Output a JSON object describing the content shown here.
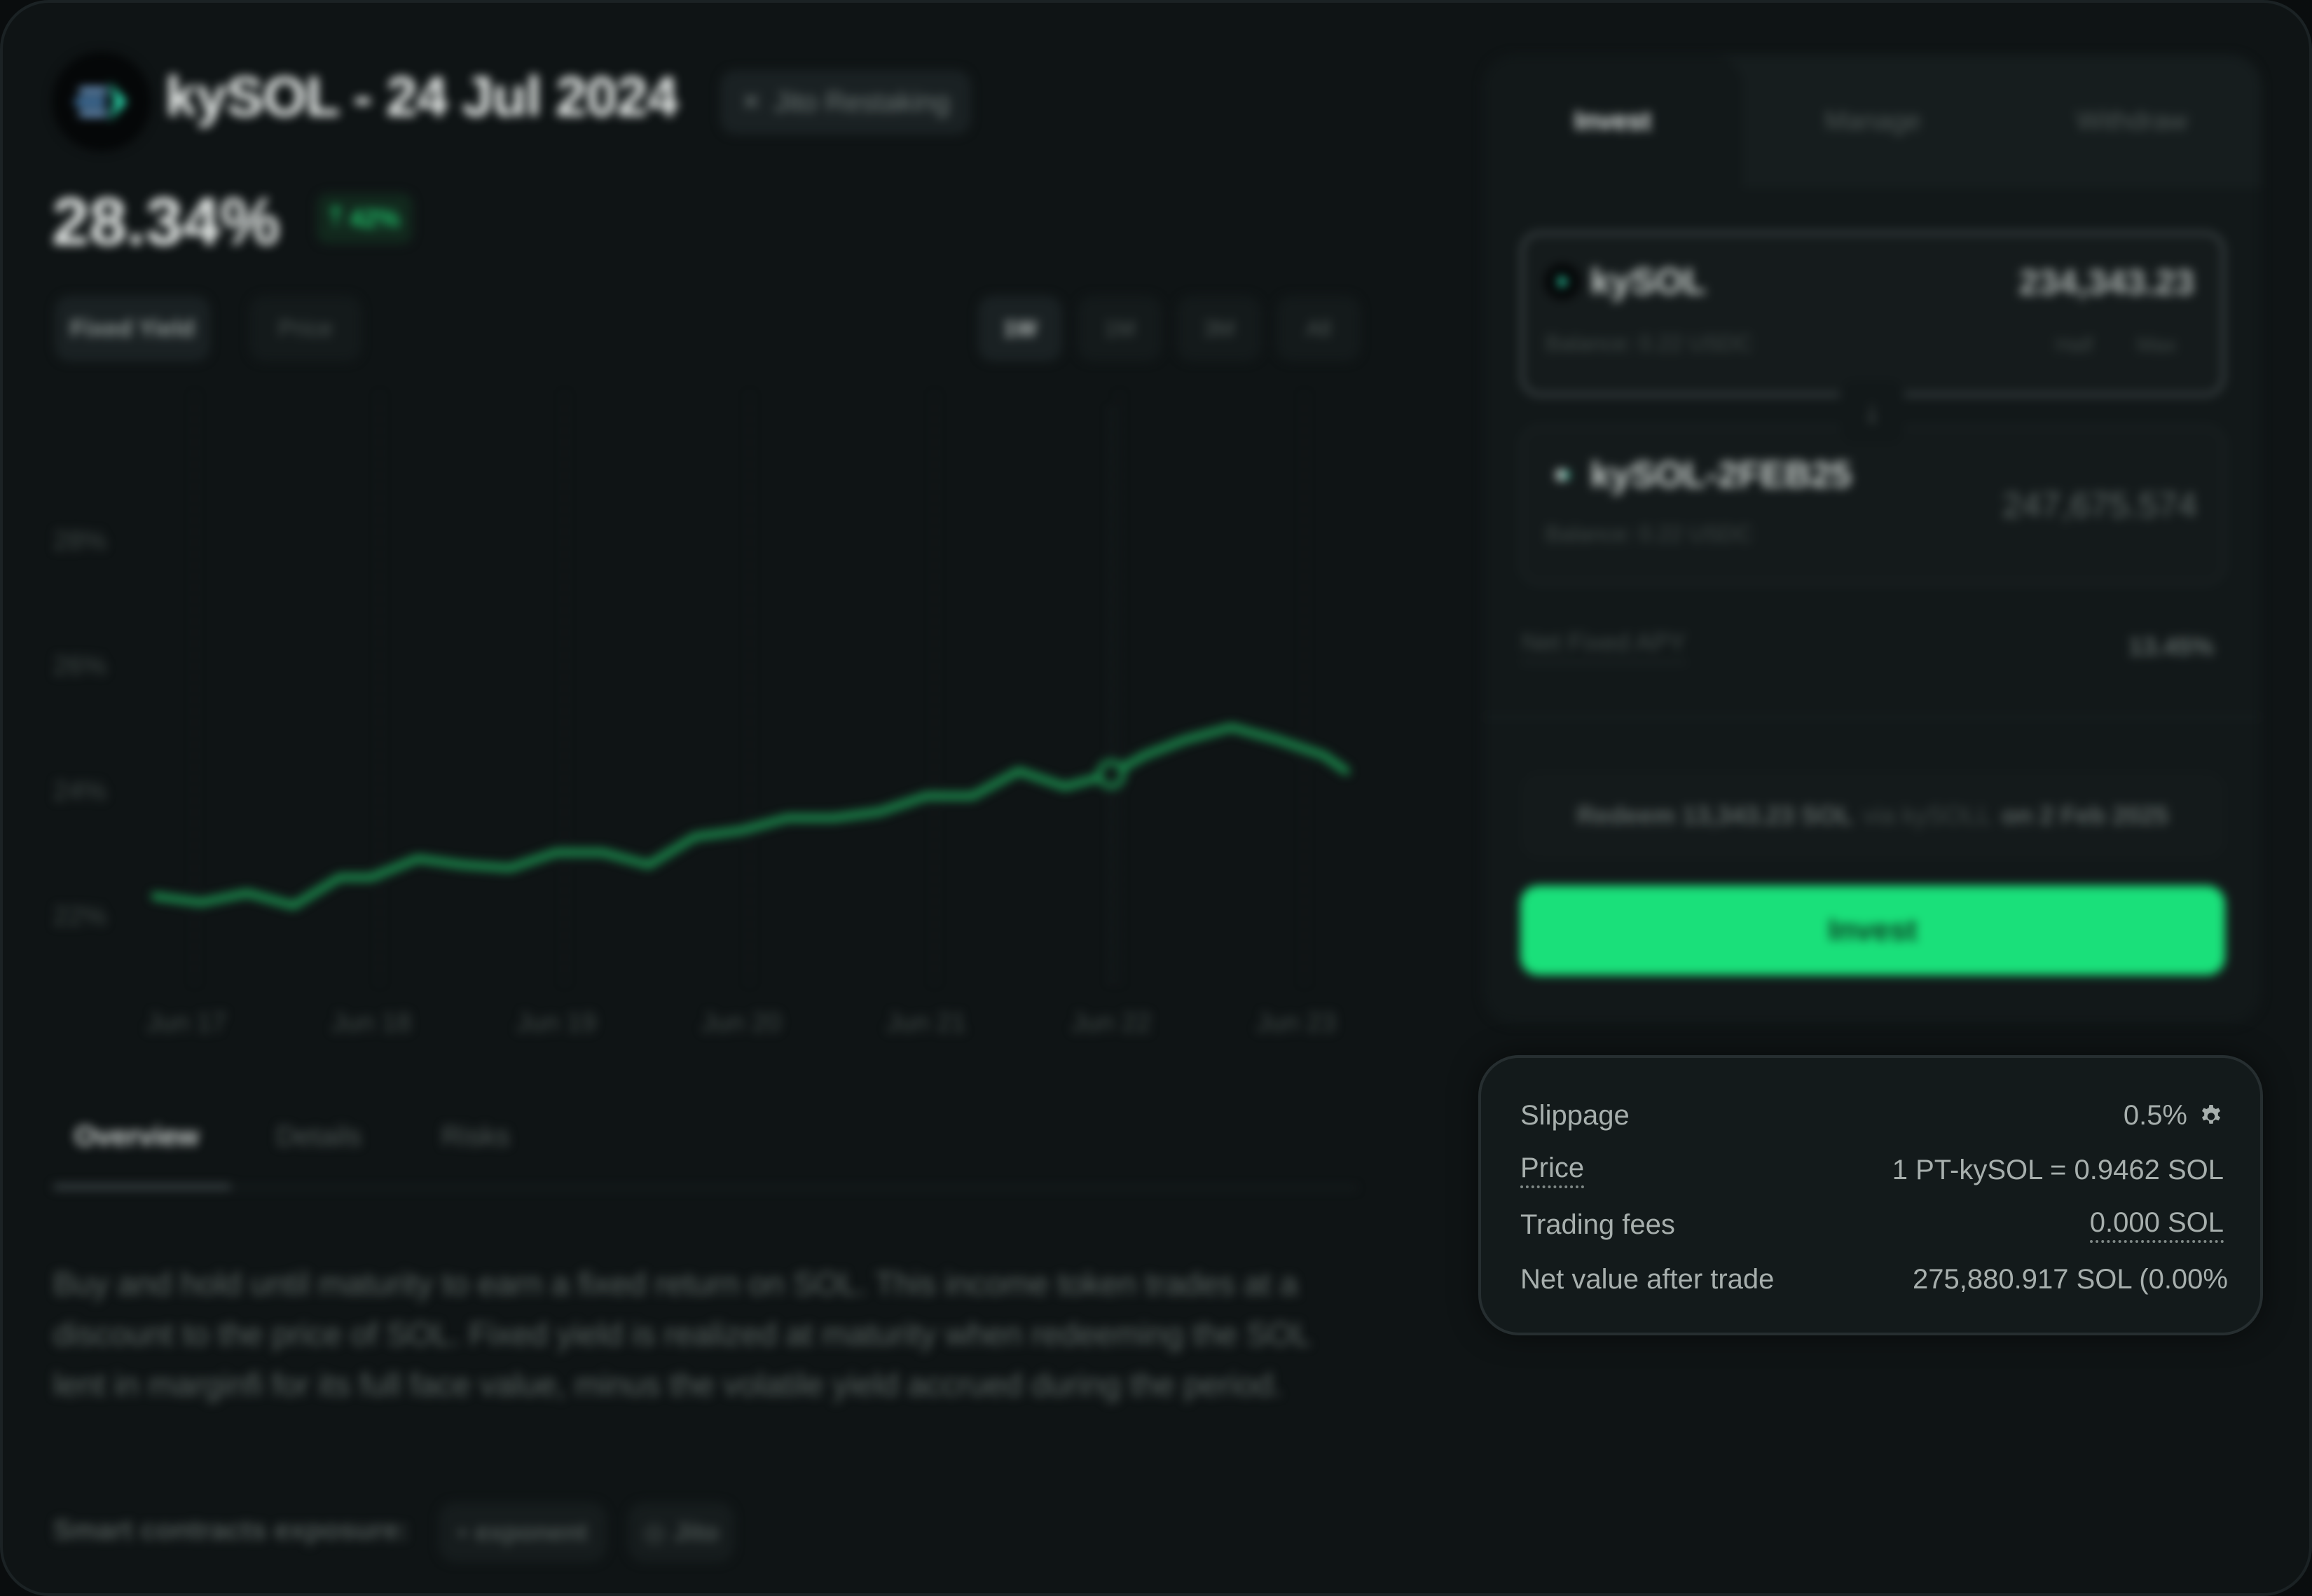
{
  "header": {
    "title": "kySOL - 24 Jul 2024",
    "tag": "Jito Restaking",
    "apy": "28.34%",
    "apy_change": "42%"
  },
  "chart_controls": {
    "modes": [
      "Fixed Yield",
      "Price"
    ],
    "active_mode": "Fixed Yield",
    "ranges": [
      "1W",
      "1M",
      "3M",
      "All"
    ],
    "active_range": "1W"
  },
  "chart_data": {
    "type": "line",
    "title": "",
    "xlabel": "",
    "ylabel": "",
    "x_ticks": [
      "Jun 17",
      "Jun 18",
      "Jun 19",
      "Jun 20",
      "Jun 21",
      "Jun 22",
      "Jun 23"
    ],
    "y_ticks": [
      "28%",
      "26%",
      "24%",
      "22%"
    ],
    "ylim": [
      21,
      29
    ],
    "grid": "vertical dashed",
    "series": [
      {
        "color": "#1c8f4f",
        "x": [
          16.83,
          17.08,
          17.33,
          17.58,
          17.83,
          18.0,
          18.25,
          18.5,
          18.75,
          19.0,
          19.25,
          19.5,
          19.75,
          20.0,
          20.25,
          20.5,
          20.75,
          21.0,
          21.25,
          21.5,
          21.75,
          22.0,
          22.18,
          22.4,
          22.65,
          22.9,
          23.15,
          23.27
        ],
        "y": [
          22.3,
          22.2,
          22.35,
          22.15,
          22.6,
          22.6,
          22.9,
          22.8,
          22.75,
          23.0,
          23.0,
          22.8,
          23.25,
          23.35,
          23.55,
          23.55,
          23.65,
          23.9,
          23.9,
          24.3,
          24.05,
          24.25,
          24.55,
          24.8,
          25.0,
          24.8,
          24.55,
          24.3
        ]
      }
    ],
    "marker": {
      "x": 22.0,
      "y": 24.25
    }
  },
  "content_tabs": [
    "Overview",
    "Details",
    "Risks"
  ],
  "active_content_tab": "Overview",
  "description": "Buy and hold until maturity to earn a fixed return on SOL. This income token trades at a discount to the price of SOL. Fixed yield is realized at maturity when redeeming the SOL lent in marginfi for its full face value, minus the volatile yield accrued during the period.",
  "contracts": {
    "label": "Smart contracts exposure:",
    "items": [
      "exponent",
      "Jito"
    ]
  },
  "trade_panel": {
    "tabs": [
      "Invest",
      "Manage",
      "Withdraw"
    ],
    "active_tab": "Invest",
    "input": {
      "token": "kySOL",
      "amount": "234,343.23",
      "balance": "Balance: 0.22 USDC",
      "half_label": "Half",
      "max_label": "Max"
    },
    "output": {
      "token": "kySOL-2FEB25",
      "amount": "247,675.574",
      "balance": "Balance: 0.22 USDC"
    },
    "net_apy_label": "Net Fixed APY",
    "net_apy_value": "13.45%",
    "redeem": {
      "prefix": "Redeem 13,343.23 SOL",
      "via": "via kySOLL",
      "suffix": "on 2 Feb 2025"
    },
    "invest_button": "Invest"
  },
  "summary": {
    "slippage_label": "Slippage",
    "slippage_value": "0.5%",
    "price_label": "Price",
    "price_value": "1 PT-kySOL = 0.9462 SOL",
    "fees_label": "Trading fees",
    "fees_value": "0.000 SOL",
    "net_label": "Net value after trade",
    "net_value": "275,880.917 SOL (0.00%"
  },
  "colors": {
    "accent_green": "#1ae07a",
    "line_green": "#1c8f4f",
    "background": "#0f1415"
  }
}
